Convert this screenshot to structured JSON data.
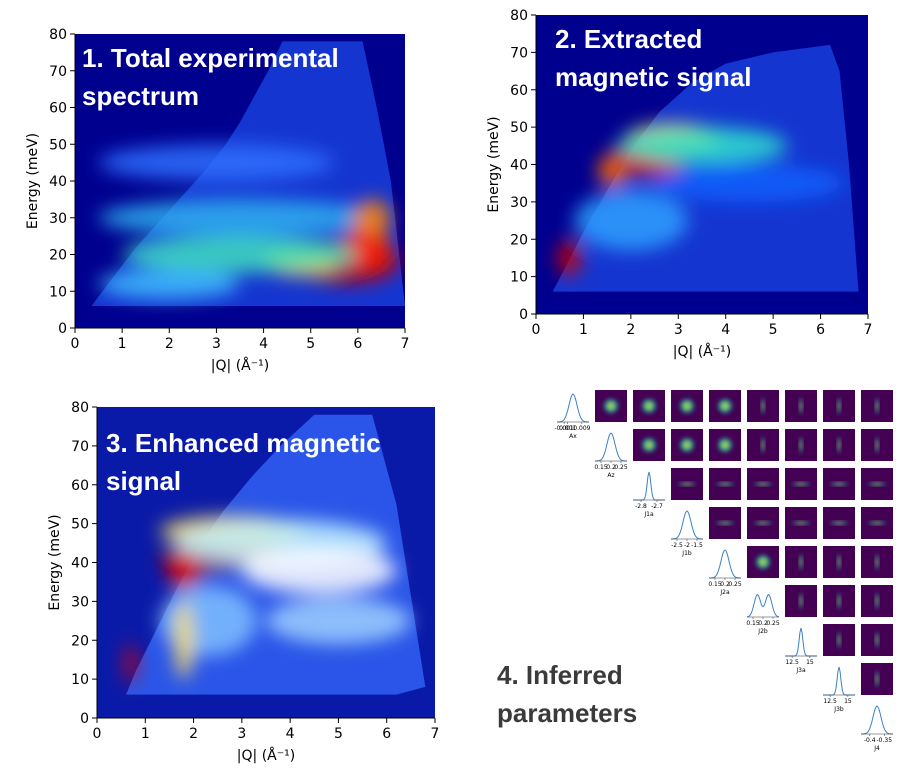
{
  "chart_data": [
    {
      "type": "heatmap",
      "title": "1. Total experimental spectrum",
      "xlabel": "|Q| (Å⁻¹)",
      "ylabel": "Energy (meV)",
      "xlim": [
        0,
        7
      ],
      "ylim": [
        0,
        80
      ],
      "xticks": [
        0,
        1,
        2,
        3,
        4,
        5,
        6,
        7
      ],
      "yticks": [
        0,
        10,
        20,
        30,
        40,
        50,
        60,
        70,
        80
      ]
    },
    {
      "type": "heatmap",
      "title": "2. Extracted magnetic signal",
      "xlabel": "|Q| (Å⁻¹)",
      "ylabel": "Energy (meV)",
      "xlim": [
        0,
        7
      ],
      "ylim": [
        0,
        80
      ],
      "xticks": [
        0,
        1,
        2,
        3,
        4,
        5,
        6,
        7
      ],
      "yticks": [
        0,
        10,
        20,
        30,
        40,
        50,
        60,
        70,
        80
      ]
    },
    {
      "type": "heatmap",
      "title": "3. Enhanced magnetic signal",
      "xlabel": "|Q| (Å⁻¹)",
      "ylabel": "Energy (meV)",
      "xlim": [
        0,
        7
      ],
      "ylim": [
        0,
        80
      ],
      "xticks": [
        0,
        1,
        2,
        3,
        4,
        5,
        6,
        7
      ],
      "yticks": [
        0,
        10,
        20,
        30,
        40,
        50,
        60,
        70,
        80
      ]
    },
    {
      "type": "corner",
      "title": "4. Inferred parameters",
      "parameters": [
        {
          "name": "Ax",
          "xlim": [
            -0.005,
            0.013
          ],
          "xticks": [
            -0.001,
            0.001,
            0.009
          ]
        },
        {
          "name": "Az",
          "xlim": [
            0.12,
            0.28
          ],
          "xticks": [
            0.15,
            0.2,
            0.25
          ]
        },
        {
          "name": "J1a",
          "xlim": [
            -2.85,
            -2.65
          ],
          "xticks": [
            -2.8,
            -2.7
          ]
        },
        {
          "name": "J1b",
          "xlim": [
            -2.8,
            -1.2
          ],
          "xticks": [
            -2.5,
            -2,
            -1.5
          ]
        },
        {
          "name": "J2a",
          "xlim": [
            0.12,
            0.28
          ],
          "xticks": [
            0.15,
            0.2,
            0.25
          ]
        },
        {
          "name": "J2b",
          "xlim": [
            0.12,
            0.28
          ],
          "xticks": [
            0.15,
            0.2,
            0.25
          ]
        },
        {
          "name": "J3a",
          "xlim": [
            11.5,
            16
          ],
          "xticks": [
            12.5,
            15
          ]
        },
        {
          "name": "J3b",
          "xlim": [
            11.5,
            16
          ],
          "xticks": [
            12.5,
            15
          ]
        },
        {
          "name": "J4",
          "xlim": [
            -0.43,
            -0.32
          ],
          "xticks": [
            -0.4,
            -0.35
          ]
        }
      ]
    }
  ]
}
